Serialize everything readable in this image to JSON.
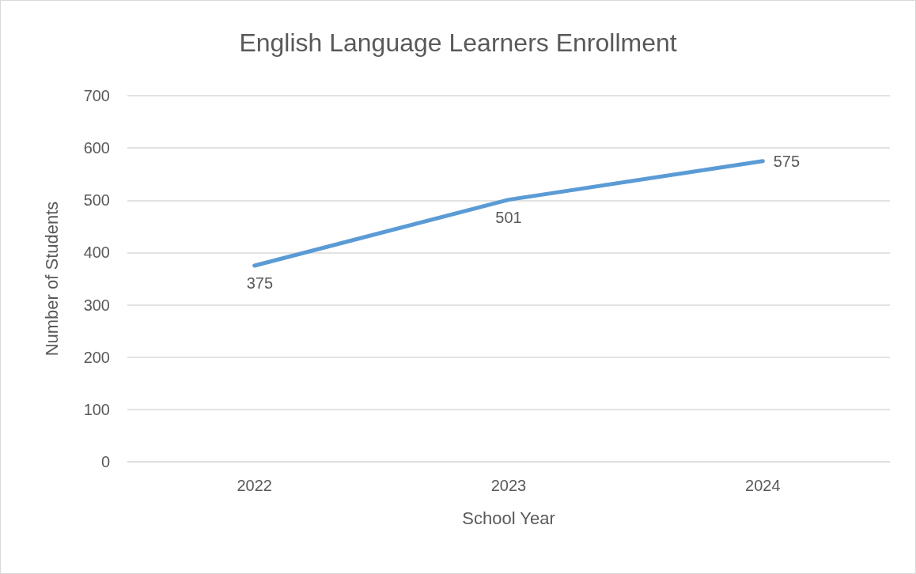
{
  "chart_data": {
    "type": "line",
    "title": "English Language Learners Enrollment",
    "xlabel": "School Year",
    "ylabel": "Number of Students",
    "categories": [
      "2022",
      "2023",
      "2024"
    ],
    "series": [
      {
        "color": "#5b9bd5",
        "values": [
          375,
          501,
          575
        ]
      }
    ],
    "ylim": [
      0,
      700
    ],
    "yticks": [
      0,
      100,
      200,
      300,
      400,
      500,
      600,
      700
    ],
    "grid": "y",
    "marker": "none",
    "line_style": "solid",
    "data_labels": true
  }
}
